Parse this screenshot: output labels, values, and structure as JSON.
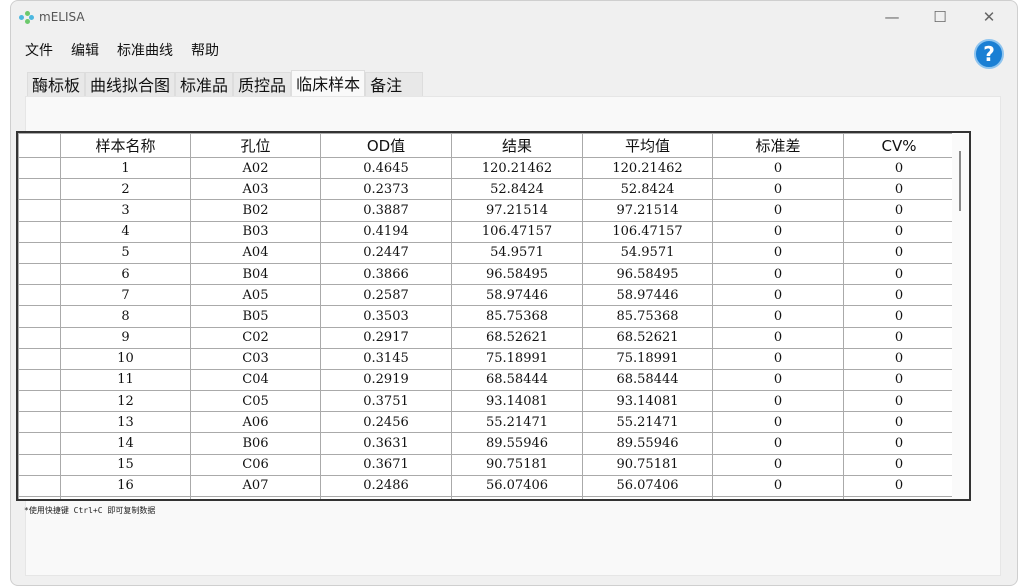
{
  "window": {
    "title": "mELISA",
    "minimize": "—",
    "maximize": "☐",
    "close": "✕"
  },
  "menu": [
    "文件",
    "编辑",
    "标准曲线",
    "帮助"
  ],
  "help_label": "?",
  "tabs": [
    {
      "label": "酶标板"
    },
    {
      "label": "曲线拟合图"
    },
    {
      "label": "标准品"
    },
    {
      "label": "质控品"
    },
    {
      "label": "临床样本",
      "active": true
    },
    {
      "label": "备注"
    }
  ],
  "table": {
    "columns": [
      "样本名称",
      "孔位",
      "OD值",
      "结果",
      "平均值",
      "标准差",
      "CV%"
    ],
    "rows": [
      [
        "1",
        "A02",
        "0.4645",
        "120.21462",
        "120.21462",
        "0",
        "0"
      ],
      [
        "2",
        "A03",
        "0.2373",
        "52.8424",
        "52.8424",
        "0",
        "0"
      ],
      [
        "3",
        "B02",
        "0.3887",
        "97.21514",
        "97.21514",
        "0",
        "0"
      ],
      [
        "4",
        "B03",
        "0.4194",
        "106.47157",
        "106.47157",
        "0",
        "0"
      ],
      [
        "5",
        "A04",
        "0.2447",
        "54.9571",
        "54.9571",
        "0",
        "0"
      ],
      [
        "6",
        "B04",
        "0.3866",
        "96.58495",
        "96.58495",
        "0",
        "0"
      ],
      [
        "7",
        "A05",
        "0.2587",
        "58.97446",
        "58.97446",
        "0",
        "0"
      ],
      [
        "8",
        "B05",
        "0.3503",
        "85.75368",
        "85.75368",
        "0",
        "0"
      ],
      [
        "9",
        "C02",
        "0.2917",
        "68.52621",
        "68.52621",
        "0",
        "0"
      ],
      [
        "10",
        "C03",
        "0.3145",
        "75.18991",
        "75.18991",
        "0",
        "0"
      ],
      [
        "11",
        "C04",
        "0.2919",
        "68.58444",
        "68.58444",
        "0",
        "0"
      ],
      [
        "12",
        "C05",
        "0.3751",
        "93.14081",
        "93.14081",
        "0",
        "0"
      ],
      [
        "13",
        "A06",
        "0.2456",
        "55.21471",
        "55.21471",
        "0",
        "0"
      ],
      [
        "14",
        "B06",
        "0.3631",
        "89.55946",
        "89.55946",
        "0",
        "0"
      ],
      [
        "15",
        "C06",
        "0.3671",
        "90.75181",
        "90.75181",
        "0",
        "0"
      ],
      [
        "16",
        "A07",
        "0.2486",
        "56.07406",
        "56.07406",
        "0",
        "0"
      ]
    ]
  },
  "note": "*使用快捷键 Ctrl+C 即可复制数据"
}
